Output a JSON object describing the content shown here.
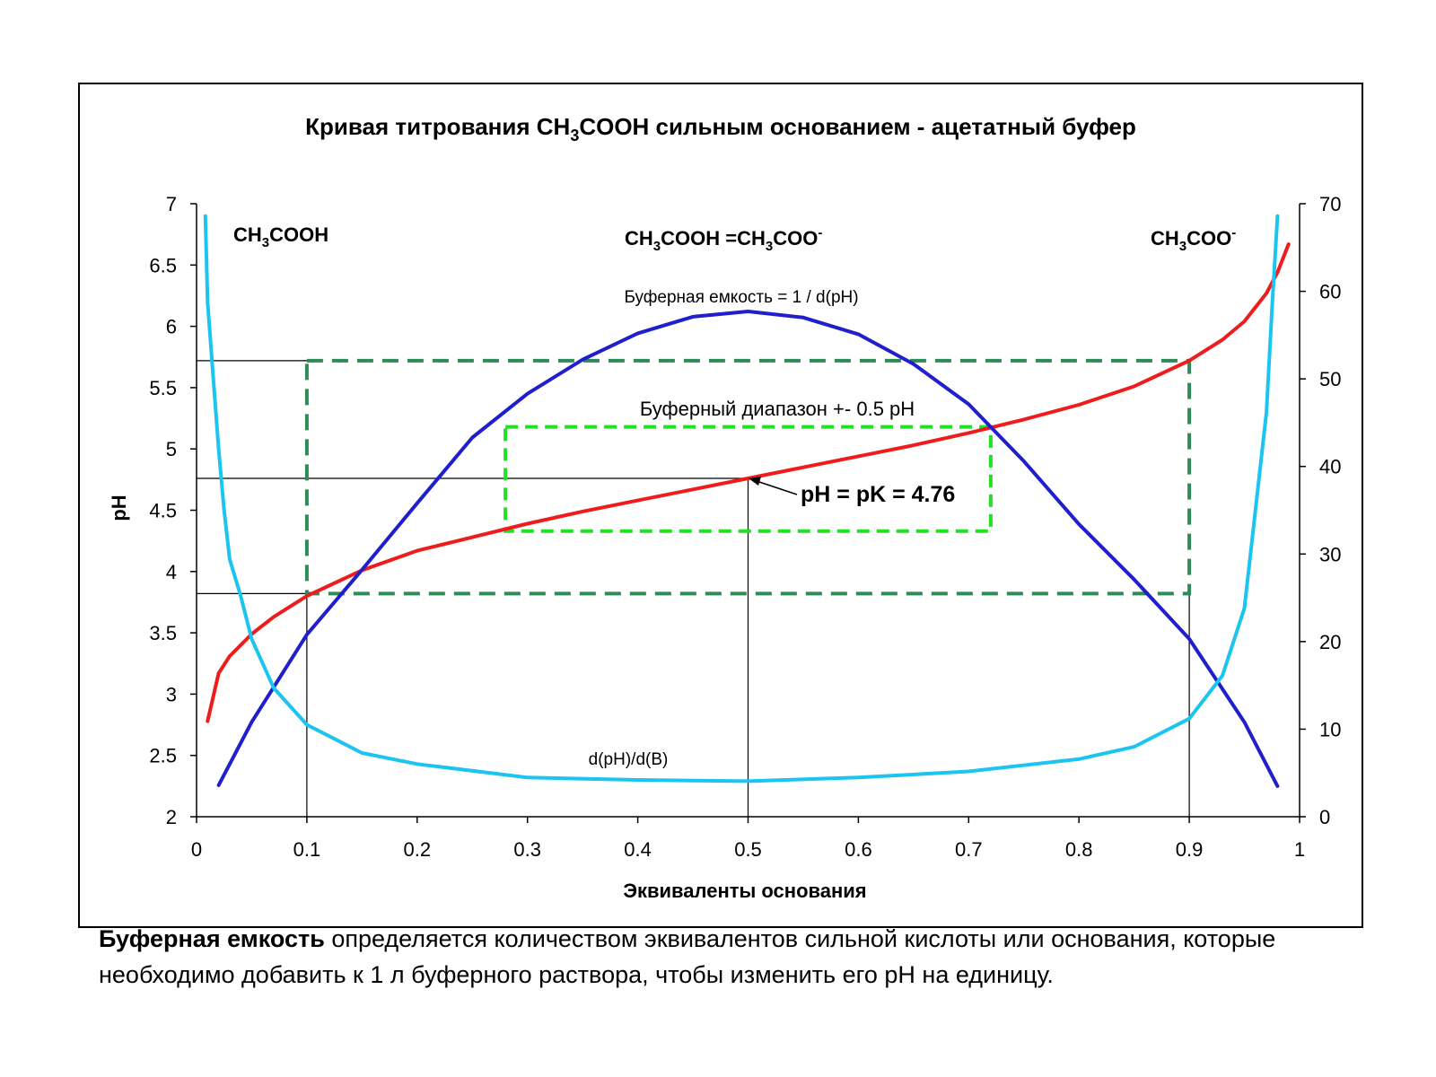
{
  "chart_data": {
    "type": "line",
    "title": {
      "prefix": "Кривая титрования CH",
      "sub": "3",
      "suffix": "COOH сильным основанием - ацетатный буфер"
    },
    "xlabel": "Эквиваленты основания",
    "ylabel": "pH",
    "xlim": [
      0,
      1
    ],
    "ylim": [
      2,
      7
    ],
    "y2lim": [
      0,
      70
    ],
    "x_ticks": [
      "0",
      "0.1",
      "0.2",
      "0.3",
      "0.4",
      "0.5",
      "0.6",
      "0.7",
      "0.8",
      "0.9",
      "1"
    ],
    "y_ticks": [
      "2",
      "2.5",
      "3",
      "3.5",
      "4",
      "4.5",
      "5",
      "5.5",
      "6",
      "6.5",
      "7"
    ],
    "y2_ticks": [
      "0",
      "10",
      "20",
      "30",
      "40",
      "50",
      "60",
      "70"
    ],
    "grid": false,
    "legend": "none",
    "series": [
      {
        "axis": "y",
        "color": "#ee1c1c",
        "x": [
          0.01,
          0.02,
          0.03,
          0.05,
          0.07,
          0.1,
          0.15,
          0.2,
          0.25,
          0.3,
          0.35,
          0.4,
          0.45,
          0.5,
          0.55,
          0.6,
          0.65,
          0.7,
          0.75,
          0.8,
          0.85,
          0.9,
          0.93,
          0.95,
          0.97,
          0.98,
          0.99
        ],
        "values": [
          2.78,
          3.17,
          3.31,
          3.49,
          3.63,
          3.8,
          4.01,
          4.17,
          4.28,
          4.39,
          4.49,
          4.58,
          4.67,
          4.76,
          4.85,
          4.94,
          5.03,
          5.13,
          5.24,
          5.36,
          5.51,
          5.72,
          5.89,
          6.04,
          6.27,
          6.44,
          6.67
        ]
      },
      {
        "axis": "y2",
        "name": "Буферная емкость = 1 / d(pH)",
        "color": "#1f1fcc",
        "x": [
          0.02,
          0.05,
          0.1,
          0.15,
          0.2,
          0.25,
          0.3,
          0.35,
          0.4,
          0.45,
          0.5,
          0.55,
          0.6,
          0.65,
          0.7,
          0.75,
          0.8,
          0.85,
          0.9,
          0.95,
          0.98
        ],
        "values": [
          3.6,
          10.8,
          20.8,
          28.2,
          35.8,
          43.3,
          48.3,
          52.2,
          55.2,
          57.1,
          57.7,
          57.0,
          55.1,
          51.7,
          47.1,
          40.6,
          33.4,
          27.1,
          20.3,
          10.8,
          3.5
        ]
      },
      {
        "axis": "y",
        "name": "d(pH)/d(B)",
        "color": "#1cc4f0",
        "x": [
          0.008,
          0.01,
          0.015,
          0.02,
          0.025,
          0.03,
          0.04,
          0.05,
          0.07,
          0.1,
          0.15,
          0.2,
          0.3,
          0.4,
          0.5,
          0.6,
          0.7,
          0.8,
          0.85,
          0.9,
          0.93,
          0.95,
          0.97,
          0.975,
          0.98
        ],
        "values": [
          6.9,
          6.2,
          5.6,
          5.0,
          4.5,
          4.1,
          3.8,
          3.45,
          3.05,
          2.75,
          2.52,
          2.43,
          2.32,
          2.3,
          2.29,
          2.32,
          2.37,
          2.47,
          2.57,
          2.8,
          3.15,
          3.7,
          5.3,
          6.15,
          6.9
        ]
      }
    ],
    "annotations": {
      "top_left": {
        "prefix": "CH",
        "sub": "3",
        "suffix": "COOH"
      },
      "top_center": {
        "a": "CH",
        "a_sub": "3",
        "b": "COOH =CH",
        "b_sub": "3",
        "c": "COO",
        "c_sup": "-"
      },
      "top_right": {
        "prefix": "CH",
        "sub": "3",
        "suffix": "COO",
        "sup": "-"
      },
      "capacity_label": "Буферная емкость = 1 / d(pH)",
      "range_label": "Буферный диапазон +- 0.5 pH",
      "pk_label": "pH = pK = 4.76",
      "derivative_label": "d(pH)/d(B)"
    },
    "buffer_box_outer": {
      "x": [
        0.1,
        0.9
      ],
      "y": [
        3.82,
        5.72
      ],
      "color": "#2e8b57"
    },
    "buffer_box_inner": {
      "x": [
        0.28,
        0.72
      ],
      "y": [
        4.33,
        5.18
      ],
      "color": "#22e022"
    },
    "reference_lines": {
      "vertical_x": [
        0.1,
        0.5,
        0.9
      ],
      "horizontal_y": [
        3.82,
        4.76,
        5.72
      ]
    }
  },
  "caption": {
    "bold": "Буферная емкость",
    "rest": " определяется количеством эквивалентов сильной кислоты или основания, которые необходимо добавить к 1 л буферного раствора, чтобы изменить его pH на единицу."
  }
}
